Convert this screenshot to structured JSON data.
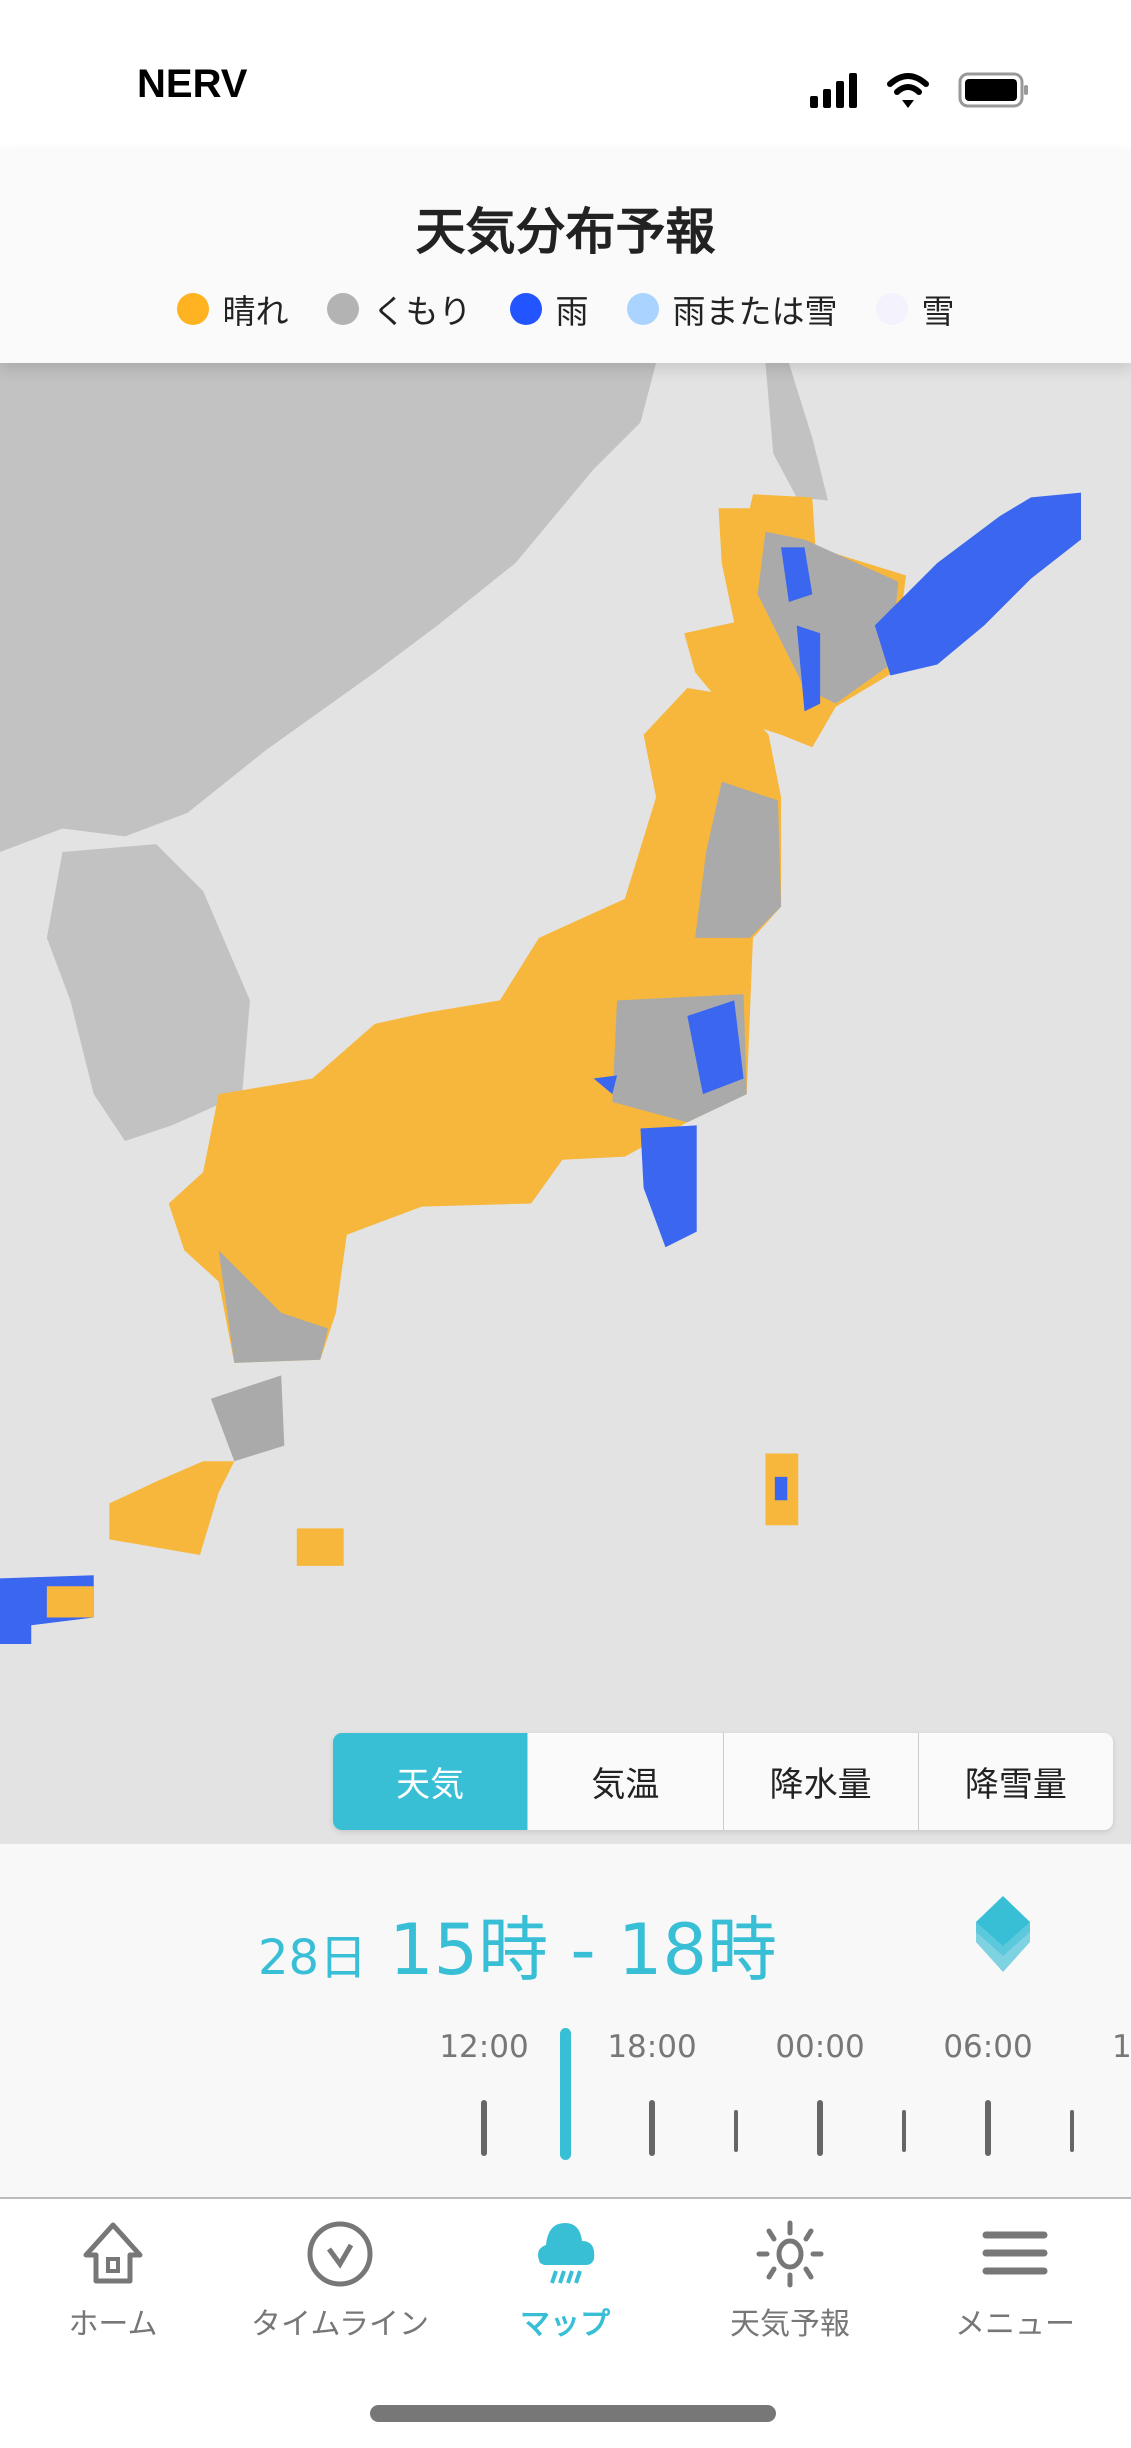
{
  "status_bar": {
    "carrier": "NERV",
    "icons": [
      "signal-icon",
      "wifi-icon",
      "battery-icon"
    ]
  },
  "header": {
    "title": "天気分布予報",
    "legend": [
      {
        "label": "晴れ",
        "color": "#ffb320"
      },
      {
        "label": "くもり",
        "color": "#b3b3b3"
      },
      {
        "label": "雨",
        "color": "#2255ff"
      },
      {
        "label": "雨または雪",
        "color": "#aad4ff"
      },
      {
        "label": "雪",
        "color": "#f3f2fd"
      }
    ]
  },
  "map": {
    "colors": {
      "sea": "#e3e3e3",
      "land": "#c2c2c2",
      "sunny": "#f6b73c",
      "cloudy": "#aaaaaa",
      "rain": "#3a66f0"
    }
  },
  "layer_tabs": [
    {
      "label": "天気",
      "active": true
    },
    {
      "label": "気温",
      "active": false
    },
    {
      "label": "降水量",
      "active": false
    },
    {
      "label": "降雪量",
      "active": false
    }
  ],
  "time": {
    "day": "28日",
    "range": "15時 - 18時"
  },
  "timeline": {
    "labels": [
      "12:00",
      "18:00",
      "00:00",
      "06:00",
      "1"
    ]
  },
  "nav": [
    {
      "label": "ホーム",
      "icon": "home-icon",
      "active": false
    },
    {
      "label": "タイムライン",
      "icon": "check-circle-icon",
      "active": false
    },
    {
      "label": "マップ",
      "icon": "rain-cloud-icon",
      "active": true
    },
    {
      "label": "天気予報",
      "icon": "sun-icon",
      "active": false
    },
    {
      "label": "メニュー",
      "icon": "menu-icon",
      "active": false
    }
  ],
  "accent": "#38bfd6"
}
